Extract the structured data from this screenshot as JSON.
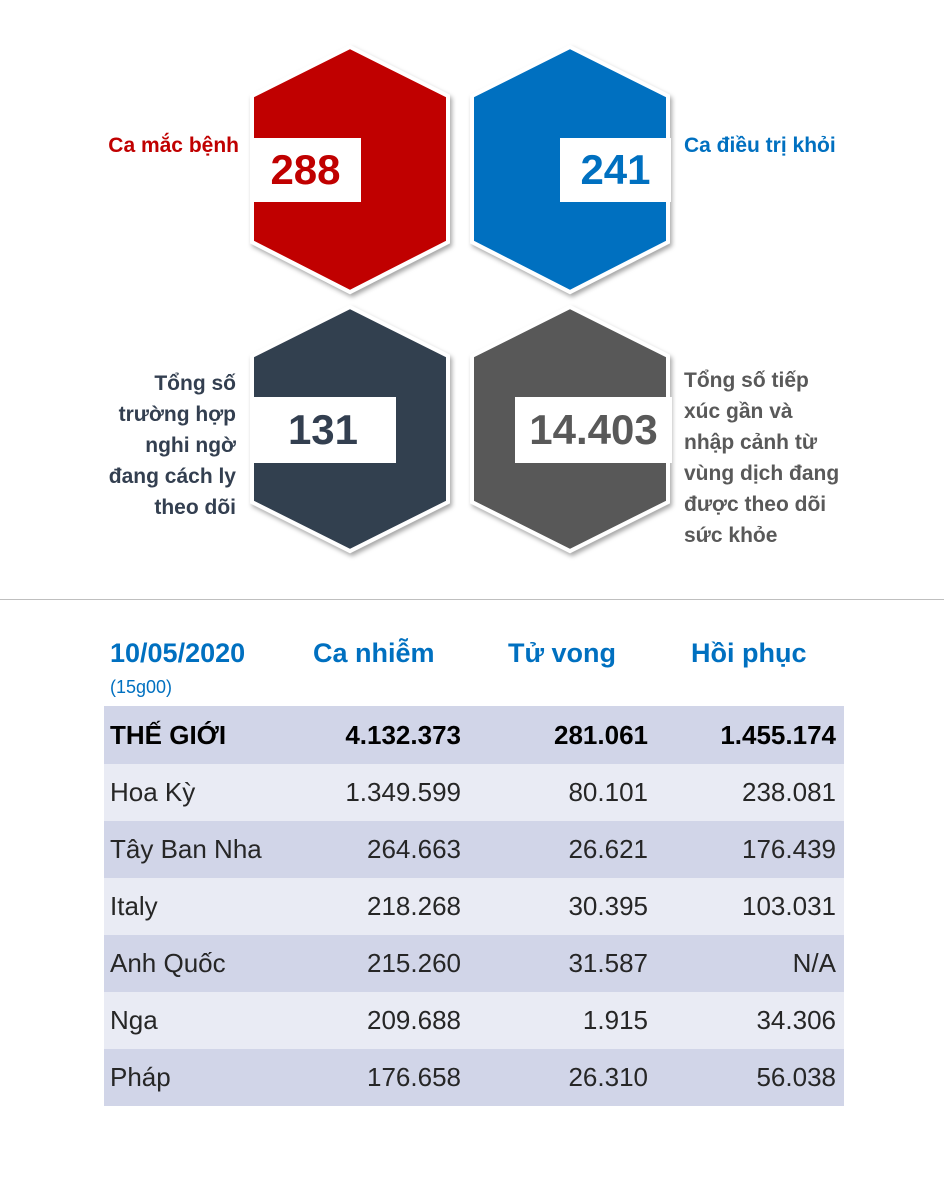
{
  "stats": {
    "cases": {
      "label": "Ca mắc bệnh",
      "value": "288",
      "color": "#c00000"
    },
    "recovered": {
      "label": "Ca điều trị khỏi",
      "value": "241",
      "color": "#0070c0"
    },
    "suspected": {
      "label_lines": [
        "Tổng số",
        "trường hợp",
        "nghi ngờ",
        "đang cách ly",
        "theo dõi"
      ],
      "value": "131",
      "color": "#333f50"
    },
    "monitored": {
      "label_lines": [
        "Tổng số tiếp",
        "xúc gần và",
        "nhập cảnh từ",
        "vùng dịch đang",
        "được theo dõi",
        "sức khỏe"
      ],
      "value": "14.403",
      "color": "#595959"
    }
  },
  "table": {
    "date": "10/05/2020",
    "time": "(15g00)",
    "columns": [
      "Ca nhiễm",
      "Tử vong",
      "Hồi phục"
    ],
    "rows": [
      {
        "name": "THẾ GIỚI",
        "infected": "4.132.373",
        "deaths": "281.061",
        "recovered": "1.455.174"
      },
      {
        "name": "Hoa Kỳ",
        "infected": "1.349.599",
        "deaths": "80.101",
        "recovered": "238.081"
      },
      {
        "name": "Tây Ban Nha",
        "infected": "264.663",
        "deaths": "26.621",
        "recovered": "176.439"
      },
      {
        "name": "Italy",
        "infected": "218.268",
        "deaths": "30.395",
        "recovered": "103.031"
      },
      {
        "name": "Anh Quốc",
        "infected": "215.260",
        "deaths": "31.587",
        "recovered": "N/A"
      },
      {
        "name": "Nga",
        "infected": "209.688",
        "deaths": "1.915",
        "recovered": "34.306"
      },
      {
        "name": "Pháp",
        "infected": "176.658",
        "deaths": "26.310",
        "recovered": "56.038"
      }
    ]
  }
}
